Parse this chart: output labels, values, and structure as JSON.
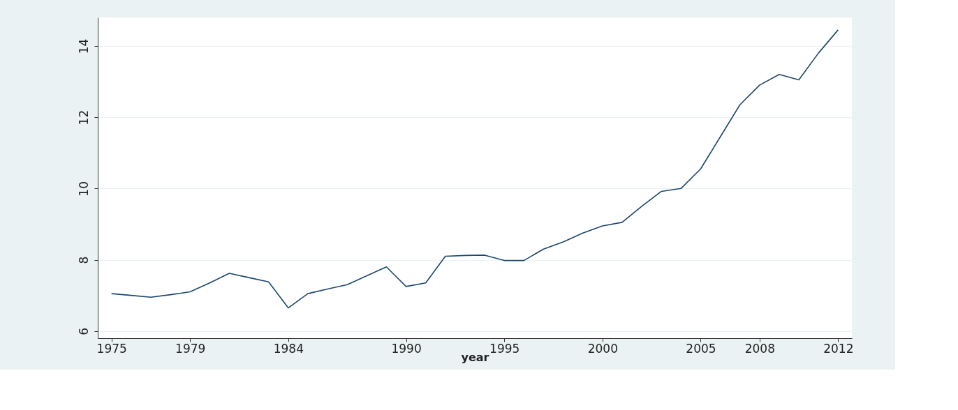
{
  "chart_data": {
    "type": "line",
    "xlabel": "year",
    "x": [
      1975,
      1976,
      1977,
      1978,
      1979,
      1980,
      1981,
      1982,
      1983,
      1984,
      1985,
      1986,
      1987,
      1988,
      1989,
      1990,
      1991,
      1992,
      1993,
      1994,
      1995,
      1996,
      1997,
      1998,
      1999,
      2000,
      2001,
      2002,
      2003,
      2004,
      2005,
      2006,
      2007,
      2008,
      2009,
      2010,
      2011,
      2012
    ],
    "series": [
      {
        "color": "#1a476f",
        "values": [
          7.05,
          7.0,
          6.95,
          7.02,
          7.1,
          7.35,
          7.62,
          7.5,
          7.38,
          6.65,
          7.05,
          7.18,
          7.3,
          7.55,
          7.8,
          7.25,
          7.35,
          8.1,
          8.12,
          8.13,
          7.98,
          7.98,
          8.3,
          8.5,
          8.75,
          8.95,
          9.05,
          9.5,
          9.92,
          10.0,
          10.55,
          11.45,
          12.35,
          12.9,
          13.2,
          13.05,
          13.8,
          14.45
        ]
      }
    ],
    "xlim": [
      1974.3,
      2012.7
    ],
    "ylim": [
      5.8,
      14.8
    ],
    "xticks": [
      1975,
      1979,
      1984,
      1990,
      1995,
      2000,
      2005,
      2008,
      2012
    ],
    "yticks": [
      6,
      8,
      10,
      12,
      14
    ],
    "grid": "y",
    "marker": "none",
    "line_style": "solid"
  }
}
